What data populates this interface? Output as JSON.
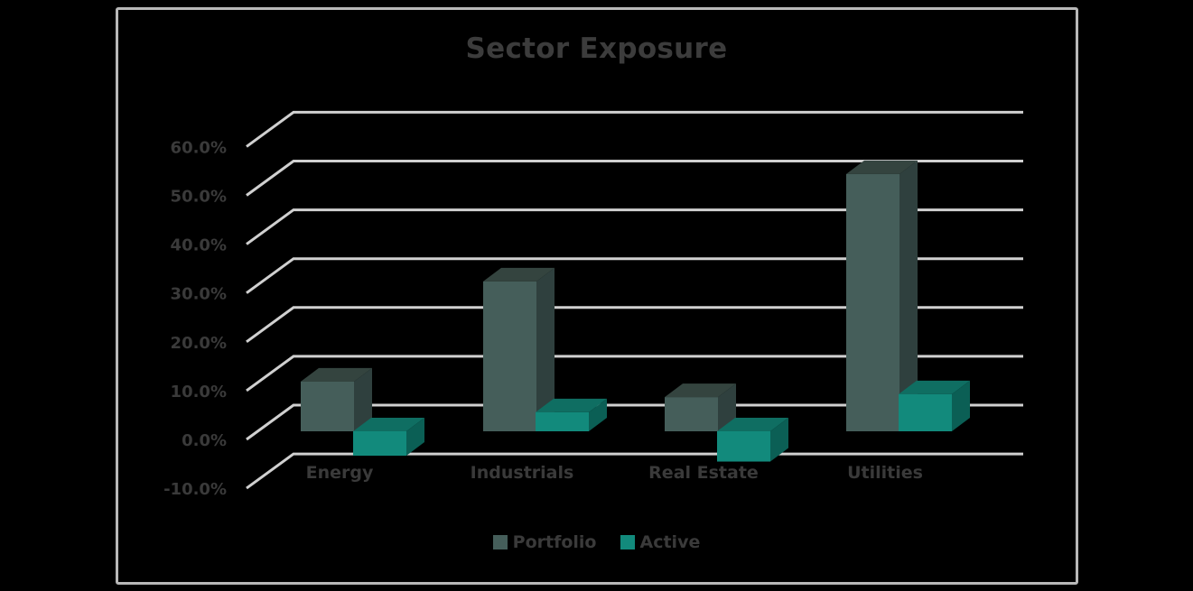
{
  "chart_data": {
    "type": "bar",
    "subtype": "3d-clustered-column",
    "title": "Sector Exposure",
    "xlabel": "",
    "ylabel": "",
    "categories": [
      "Energy",
      "Industrials",
      "Real Estate",
      "Utilities"
    ],
    "series": [
      {
        "name": "Portfolio",
        "color": "#455e5a",
        "values": [
          10.2,
          30.7,
          7.0,
          52.7
        ]
      },
      {
        "name": "Active",
        "color": "#128a7c",
        "values": [
          -5.0,
          3.9,
          -6.2,
          7.6
        ]
      }
    ],
    "ylim": [
      -10,
      60
    ],
    "y_ticks": [
      "-10.0%",
      "0.0%",
      "10.0%",
      "20.0%",
      "30.0%",
      "40.0%",
      "50.0%",
      "60.0%"
    ],
    "grid": true,
    "legend_position": "bottom"
  },
  "legend": {
    "items": [
      {
        "label": "Portfolio",
        "color": "#455e5a"
      },
      {
        "label": "Active",
        "color": "#128a7c"
      }
    ]
  }
}
